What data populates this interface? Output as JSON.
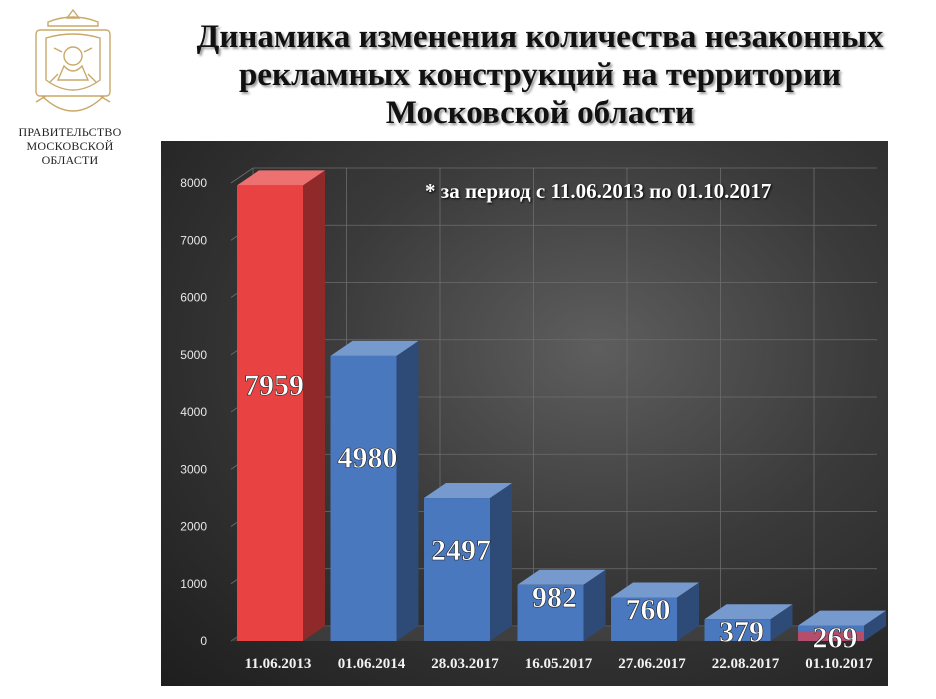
{
  "header": {
    "title_lines": [
      "Динамика изменения количества незаконных",
      "рекламных конструкций на территории",
      "Московской области"
    ]
  },
  "org": {
    "logo_icon": "moscow-region-coat-of-arms-icon",
    "name_lines": [
      "ПРАВИТЕЛЬСТВО",
      "МОСКОВСКОЙ",
      "ОБЛАСТИ"
    ]
  },
  "chart_data": {
    "type": "bar",
    "title": "Динамика изменения количества незаконных рекламных конструкций на территории Московской области",
    "annotation": "* за период с 11.06.2013 по 01.10.2017",
    "categories": [
      "11.06.2013",
      "01.06.2014",
      "28.03.2017",
      "16.05.2017",
      "27.06.2017",
      "22.08.2017",
      "01.10.2017"
    ],
    "values": [
      7959,
      4980,
      2497,
      982,
      760,
      379,
      269
    ],
    "data_labels": [
      "7959",
      "4980",
      "2497",
      "982",
      "760",
      "379",
      "269"
    ],
    "bar_colors": [
      "#e84242",
      "#4a78be",
      "#4a78be",
      "#4a78be",
      "#4a78be",
      "#4a78be",
      "#4a78be"
    ],
    "last_bar_accent": "#c8475f",
    "ylim": [
      0,
      8000
    ],
    "yticks": [
      "0",
      "1000",
      "2000",
      "3000",
      "4000",
      "5000",
      "6000",
      "7000",
      "8000"
    ],
    "grid": true,
    "style": "3d-column",
    "xlabel": "",
    "ylabel": ""
  }
}
